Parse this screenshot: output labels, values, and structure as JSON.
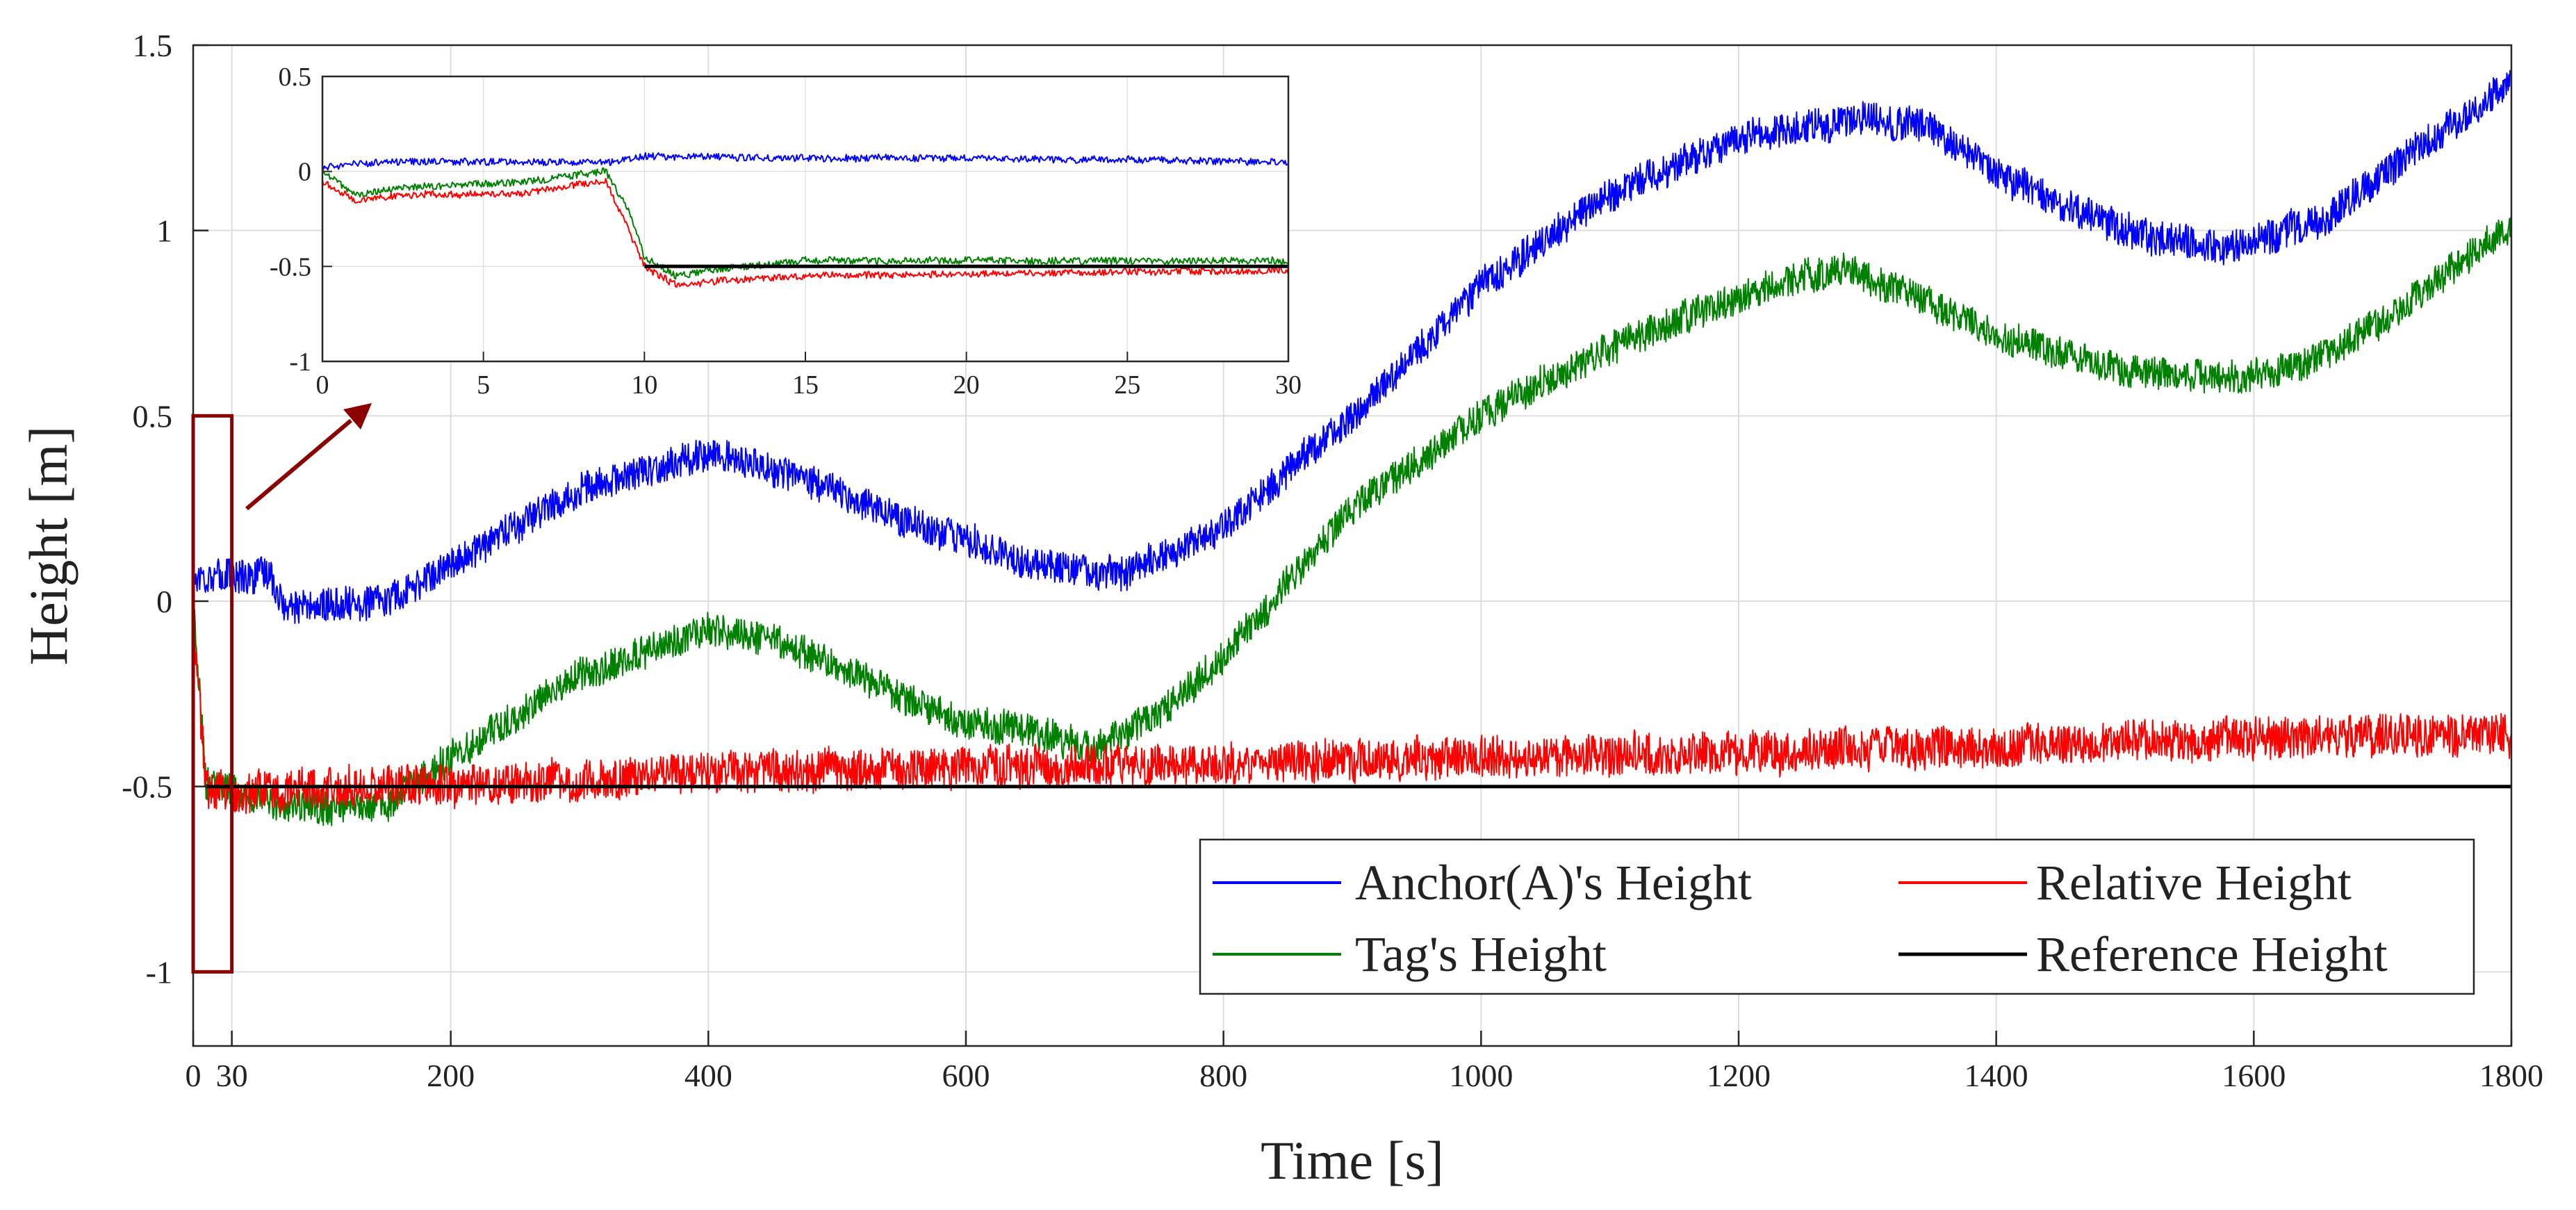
{
  "chart_data": {
    "type": "line",
    "xlabel": "Time [s]",
    "ylabel": "Height [m]",
    "xlim": [
      0,
      1800
    ],
    "ylim": [
      -1.2,
      1.5
    ],
    "xticks": [
      0,
      30,
      200,
      400,
      600,
      800,
      1000,
      1200,
      1400,
      1600,
      1800
    ],
    "xtick_labels": [
      "0",
      "30",
      "200",
      "400",
      "600",
      "800",
      "1000",
      "1200",
      "1400",
      "1600",
      "1800"
    ],
    "yticks": [
      -1,
      -0.5,
      0,
      0.5,
      1,
      1.5
    ],
    "ytick_labels": [
      "-1",
      "-0.5",
      "0",
      "0.5",
      "1",
      "1.5"
    ],
    "grid": true,
    "legend": {
      "position": "bottom-right",
      "columns": 2
    },
    "series": [
      {
        "name": "Anchor(A)'s Height",
        "color": "#0000ff",
        "noise": 0.045,
        "x": [
          0,
          30,
          60,
          70,
          150,
          200,
          300,
          400,
          450,
          500,
          550,
          600,
          650,
          700,
          720,
          800,
          900,
          1000,
          1100,
          1200,
          1300,
          1350,
          1400,
          1500,
          1580,
          1650,
          1700,
          1800
        ],
        "y": [
          0.07,
          0.07,
          0.07,
          -0.02,
          0.0,
          0.1,
          0.3,
          0.4,
          0.35,
          0.3,
          0.22,
          0.17,
          0.1,
          0.08,
          0.07,
          0.2,
          0.5,
          0.85,
          1.1,
          1.25,
          1.3,
          1.28,
          1.15,
          1.0,
          0.95,
          1.02,
          1.15,
          1.4
        ]
      },
      {
        "name": "Tag's Height",
        "color": "#008000",
        "noise": 0.045,
        "x": [
          0,
          10,
          30,
          60,
          100,
          150,
          200,
          300,
          400,
          450,
          500,
          600,
          650,
          700,
          750,
          800,
          900,
          1000,
          1100,
          1200,
          1280,
          1350,
          1400,
          1500,
          1600,
          1650,
          1700,
          1800
        ],
        "y": [
          0.0,
          -0.5,
          -0.5,
          -0.55,
          -0.55,
          -0.55,
          -0.42,
          -0.2,
          -0.08,
          -0.1,
          -0.18,
          -0.33,
          -0.35,
          -0.4,
          -0.3,
          -0.15,
          0.25,
          0.5,
          0.68,
          0.82,
          0.9,
          0.8,
          0.72,
          0.62,
          0.6,
          0.65,
          0.75,
          1.02
        ]
      },
      {
        "name": "Relative Height",
        "color": "#ff0000",
        "noise": 0.055,
        "x": [
          0,
          10,
          30,
          100,
          200,
          300,
          400,
          600,
          800,
          1000,
          1200,
          1400,
          1600,
          1800
        ],
        "y": [
          -0.05,
          -0.5,
          -0.52,
          -0.5,
          -0.5,
          -0.48,
          -0.46,
          -0.45,
          -0.44,
          -0.42,
          -0.41,
          -0.39,
          -0.37,
          -0.36
        ]
      },
      {
        "name": "Reference Height",
        "color": "#000000",
        "noise": 0,
        "x": [
          10,
          1800
        ],
        "y": [
          -0.5,
          -0.5
        ]
      }
    ],
    "highlight_box": {
      "x_range": [
        0,
        30
      ],
      "y_range": [
        -1,
        0.5
      ],
      "color": "#8b0000"
    },
    "inset": {
      "xlim": [
        0,
        30
      ],
      "ylim": [
        -1,
        0.5
      ],
      "xticks": [
        0,
        5,
        10,
        15,
        20,
        25,
        30
      ],
      "xtick_labels": [
        "0",
        "5",
        "10",
        "15",
        "20",
        "25",
        "30"
      ],
      "yticks": [
        -1,
        -0.5,
        0,
        0.5
      ],
      "ytick_labels": [
        "-1",
        "-0.5",
        "0",
        "0.5"
      ],
      "series": [
        {
          "name": "Anchor(A)'s Height",
          "color": "#0000ff",
          "noise": 0.018,
          "x": [
            0,
            2,
            5,
            9,
            10,
            15,
            20,
            25,
            30
          ],
          "y": [
            0.02,
            0.05,
            0.05,
            0.05,
            0.08,
            0.07,
            0.07,
            0.06,
            0.05
          ]
        },
        {
          "name": "Tag's Height",
          "color": "#008000",
          "noise": 0.018,
          "x": [
            0,
            1,
            3,
            6,
            8.8,
            9.5,
            10,
            11,
            12,
            15,
            20,
            25,
            30
          ],
          "y": [
            0.0,
            -0.12,
            -0.08,
            -0.06,
            0.0,
            -0.2,
            -0.45,
            -0.55,
            -0.52,
            -0.47,
            -0.47,
            -0.47,
            -0.47
          ]
        },
        {
          "name": "Relative Height",
          "color": "#ff0000",
          "noise": 0.018,
          "x": [
            0,
            1,
            3,
            6,
            8.8,
            9.5,
            10,
            11,
            12,
            15,
            20,
            25,
            30
          ],
          "y": [
            -0.05,
            -0.15,
            -0.12,
            -0.12,
            -0.05,
            -0.3,
            -0.5,
            -0.6,
            -0.58,
            -0.55,
            -0.54,
            -0.53,
            -0.52
          ]
        },
        {
          "name": "Reference Height",
          "color": "#000000",
          "noise": 0,
          "x": [
            10,
            30
          ],
          "y": [
            -0.5,
            -0.5
          ]
        }
      ]
    }
  }
}
